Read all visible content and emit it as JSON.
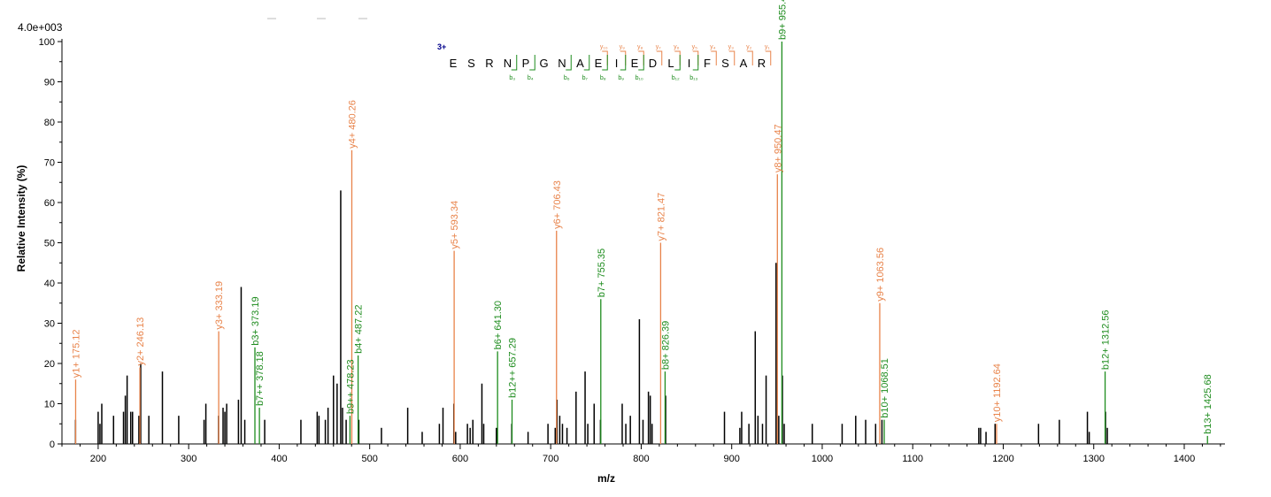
{
  "chart_data": {
    "type": "bar",
    "scale_label": "4.0e+003",
    "xlabel": "m/z",
    "ylabel": "Relative   Intensity (%)",
    "xlim": [
      160,
      1445
    ],
    "ylim": [
      0,
      100
    ],
    "x_ticks": [
      200,
      300,
      400,
      500,
      600,
      700,
      800,
      900,
      1000,
      1100,
      1200,
      1300,
      1400
    ],
    "y_ticks": [
      0,
      10,
      20,
      30,
      40,
      50,
      60,
      70,
      80,
      90,
      100
    ],
    "colors": {
      "y_ion": "#e8834a",
      "b_ion": "#1e8c1e",
      "unassigned": "#000000",
      "charge": "#00008b"
    },
    "peptide": {
      "charge": "3+",
      "sequence": [
        "E",
        "S",
        "R",
        "N",
        "P",
        "G",
        "N",
        "A",
        "E",
        "I",
        "E",
        "D",
        "L",
        "I",
        "F",
        "S",
        "A",
        "R"
      ],
      "y_ions": [
        {
          "label": "y₁₀",
          "after": 8
        },
        {
          "label": "y₉",
          "after": 9
        },
        {
          "label": "y₈",
          "after": 10
        },
        {
          "label": "y₇",
          "after": 11
        },
        {
          "label": "y₆",
          "after": 12
        },
        {
          "label": "y₅",
          "after": 13
        },
        {
          "label": "y₄",
          "after": 14
        },
        {
          "label": "y₃",
          "after": 15
        },
        {
          "label": "y₂",
          "after": 16
        },
        {
          "label": "y₁",
          "after": 17
        }
      ],
      "b_ions": [
        {
          "label": "b₃",
          "after": 3
        },
        {
          "label": "b₄",
          "after": 4
        },
        {
          "label": "b₆",
          "after": 6
        },
        {
          "label": "b₇",
          "after": 7
        },
        {
          "label": "b₈",
          "after": 8
        },
        {
          "label": "b₉",
          "after": 9
        },
        {
          "label": "b₁₀",
          "after": 10
        },
        {
          "label": "b₁₂",
          "after": 12
        },
        {
          "label": "b₁₃",
          "after": 13
        }
      ]
    },
    "labeled_peaks": [
      {
        "mz": 175.12,
        "intensity": 16,
        "ion": "y",
        "label": "y1+ 175.12"
      },
      {
        "mz": 246.13,
        "intensity": 19,
        "ion": "y",
        "label": "y2+ 246.13"
      },
      {
        "mz": 333.19,
        "intensity": 28,
        "ion": "y",
        "label": "y3+ 333.19"
      },
      {
        "mz": 373.19,
        "intensity": 24,
        "ion": "b",
        "label": "b3+ 373.19"
      },
      {
        "mz": 378.18,
        "intensity": 9,
        "ion": "b",
        "label": "b7++ 378.18"
      },
      {
        "mz": 478.23,
        "intensity": 7,
        "ion": "b",
        "label": "b9++ 478.23"
      },
      {
        "mz": 480.26,
        "intensity": 73,
        "ion": "y",
        "label": "y4+ 480.26"
      },
      {
        "mz": 487.22,
        "intensity": 22,
        "ion": "b",
        "label": "b4+ 487.22"
      },
      {
        "mz": 593.34,
        "intensity": 48,
        "ion": "y",
        "label": "y5+ 593.34"
      },
      {
        "mz": 641.3,
        "intensity": 23,
        "ion": "b",
        "label": "b6+ 641.30"
      },
      {
        "mz": 657.29,
        "intensity": 11,
        "ion": "b",
        "label": "b12++ 657.29"
      },
      {
        "mz": 706.43,
        "intensity": 53,
        "ion": "y",
        "label": "y6+ 706.43"
      },
      {
        "mz": 755.35,
        "intensity": 36,
        "ion": "b",
        "label": "b7+ 755.35"
      },
      {
        "mz": 821.47,
        "intensity": 50,
        "ion": "y",
        "label": "y7+ 821.47"
      },
      {
        "mz": 826.39,
        "intensity": 18,
        "ion": "b",
        "label": "b8+ 826.39"
      },
      {
        "mz": 950.47,
        "intensity": 67,
        "ion": "y",
        "label": "y8+ 950.47"
      },
      {
        "mz": 955.43,
        "intensity": 100,
        "ion": "b",
        "label": "b9+ 955.43"
      },
      {
        "mz": 1063.56,
        "intensity": 35,
        "ion": "y",
        "label": "y9+ 1063.56"
      },
      {
        "mz": 1068.51,
        "intensity": 6,
        "ion": "b",
        "label": "b10+ 1068.51"
      },
      {
        "mz": 1192.64,
        "intensity": 5,
        "ion": "y",
        "label": "y10+ 1192.64"
      },
      {
        "mz": 1312.56,
        "intensity": 18,
        "ion": "b",
        "label": "b12+ 1312.56"
      },
      {
        "mz": 1425.68,
        "intensity": 2,
        "ion": "b",
        "label": "b13+ 1425.68"
      }
    ],
    "unassigned_peaks": [
      [
        175,
        6
      ],
      [
        200,
        8
      ],
      [
        202,
        5
      ],
      [
        204,
        10
      ],
      [
        217,
        7
      ],
      [
        228,
        8
      ],
      [
        230,
        12
      ],
      [
        232,
        17
      ],
      [
        236,
        8
      ],
      [
        238,
        8
      ],
      [
        245,
        7
      ],
      [
        247,
        20
      ],
      [
        256,
        7
      ],
      [
        271,
        18
      ],
      [
        289,
        7
      ],
      [
        317,
        6
      ],
      [
        319,
        10
      ],
      [
        333,
        7
      ],
      [
        338,
        9
      ],
      [
        340,
        8
      ],
      [
        342,
        10
      ],
      [
        355,
        11
      ],
      [
        358,
        39
      ],
      [
        362,
        6
      ],
      [
        384,
        6
      ],
      [
        424,
        6
      ],
      [
        442,
        8
      ],
      [
        444,
        7
      ],
      [
        451,
        6
      ],
      [
        454,
        9
      ],
      [
        460,
        17
      ],
      [
        464,
        15
      ],
      [
        468,
        63
      ],
      [
        470,
        9
      ],
      [
        474,
        6
      ],
      [
        488,
        6
      ],
      [
        513,
        4
      ],
      [
        542,
        9
      ],
      [
        558,
        3
      ],
      [
        577,
        5
      ],
      [
        581,
        9
      ],
      [
        593,
        10
      ],
      [
        595,
        3
      ],
      [
        608,
        5
      ],
      [
        611,
        4
      ],
      [
        614,
        6
      ],
      [
        624,
        15
      ],
      [
        626,
        5
      ],
      [
        640,
        4
      ],
      [
        657,
        5
      ],
      [
        675,
        3
      ],
      [
        697,
        5
      ],
      [
        705,
        4
      ],
      [
        707,
        11
      ],
      [
        710,
        7
      ],
      [
        713,
        5
      ],
      [
        718,
        4
      ],
      [
        728,
        13
      ],
      [
        738,
        18
      ],
      [
        741,
        5
      ],
      [
        748,
        10
      ],
      [
        755,
        6
      ],
      [
        779,
        10
      ],
      [
        783,
        5
      ],
      [
        788,
        7
      ],
      [
        798,
        31
      ],
      [
        802,
        6
      ],
      [
        808,
        13
      ],
      [
        810,
        12
      ],
      [
        812,
        5
      ],
      [
        827,
        12
      ],
      [
        892,
        8
      ],
      [
        909,
        4
      ],
      [
        911,
        8
      ],
      [
        919,
        5
      ],
      [
        926,
        28
      ],
      [
        929,
        7
      ],
      [
        934,
        5
      ],
      [
        938,
        17
      ],
      [
        949,
        45
      ],
      [
        952,
        7
      ],
      [
        956,
        17
      ],
      [
        958,
        5
      ],
      [
        989,
        5
      ],
      [
        1022,
        5
      ],
      [
        1037,
        7
      ],
      [
        1048,
        6
      ],
      [
        1059,
        5
      ],
      [
        1066,
        6
      ],
      [
        1173,
        4
      ],
      [
        1175,
        4
      ],
      [
        1181,
        3
      ],
      [
        1191,
        5
      ],
      [
        1239,
        5
      ],
      [
        1262,
        6
      ],
      [
        1293,
        8
      ],
      [
        1295,
        3
      ],
      [
        1313,
        8
      ],
      [
        1315,
        4
      ]
    ]
  }
}
